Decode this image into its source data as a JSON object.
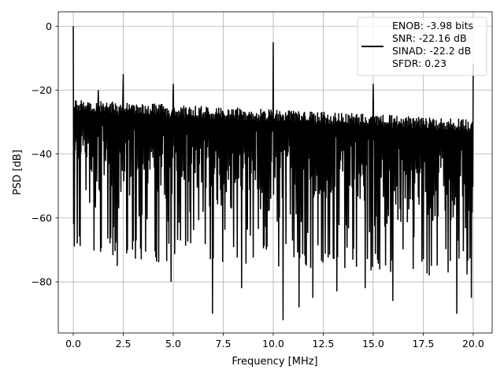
{
  "chart_data": {
    "type": "line",
    "title": "",
    "xlabel": "Frequency [MHz]",
    "ylabel": "PSD [dB]",
    "xlim": [
      -0.75,
      20.95
    ],
    "ylim": [
      -96,
      4.5
    ],
    "x_ticks": [
      0.0,
      2.5,
      5.0,
      7.5,
      10.0,
      12.5,
      15.0,
      17.5,
      20.0
    ],
    "x_tick_labels": [
      "0.0",
      "2.5",
      "5.0",
      "7.5",
      "10.0",
      "12.5",
      "15.0",
      "17.5",
      "20.0"
    ],
    "y_ticks": [
      0,
      -20,
      -40,
      -60,
      -80
    ],
    "y_tick_labels": [
      "0",
      "−20",
      "−40",
      "−60",
      "−80"
    ],
    "grid": true,
    "legend_position": "upper right",
    "legend": {
      "series_color": "#000000",
      "entries": [
        "ENOB: -3.98 bits",
        "SNR: -22.16 dB",
        "SINAD: -22.2 dB",
        "SFDR: 0.23"
      ]
    },
    "series": [
      {
        "color": "#000000",
        "description_of_shape": "dense noise floor",
        "noise_floor_upper_start": -23,
        "noise_floor_upper_end": -29,
        "noise_floor_lower_start": -65,
        "noise_floor_lower_end": -70,
        "x_range": [
          0.0,
          20.0
        ],
        "spikes": [
          {
            "x": 0.0,
            "y": 0
          },
          {
            "x": 1.25,
            "y": -20
          },
          {
            "x": 2.5,
            "y": -15
          },
          {
            "x": 5.0,
            "y": -18
          },
          {
            "x": 10.0,
            "y": -5
          },
          {
            "x": 15.0,
            "y": -18
          },
          {
            "x": 20.0,
            "y": -12
          }
        ],
        "dips": [
          {
            "x": 0.2,
            "y": -68
          },
          {
            "x": 2.2,
            "y": -75
          },
          {
            "x": 4.9,
            "y": -80
          },
          {
            "x": 6.95,
            "y": -90
          },
          {
            "x": 8.4,
            "y": -82
          },
          {
            "x": 10.5,
            "y": -92
          },
          {
            "x": 11.3,
            "y": -88
          },
          {
            "x": 12.0,
            "y": -85
          },
          {
            "x": 13.2,
            "y": -83
          },
          {
            "x": 14.6,
            "y": -82
          },
          {
            "x": 16.0,
            "y": -86
          },
          {
            "x": 17.8,
            "y": -78
          },
          {
            "x": 19.2,
            "y": -90
          },
          {
            "x": 19.9,
            "y": -85
          }
        ]
      }
    ]
  }
}
